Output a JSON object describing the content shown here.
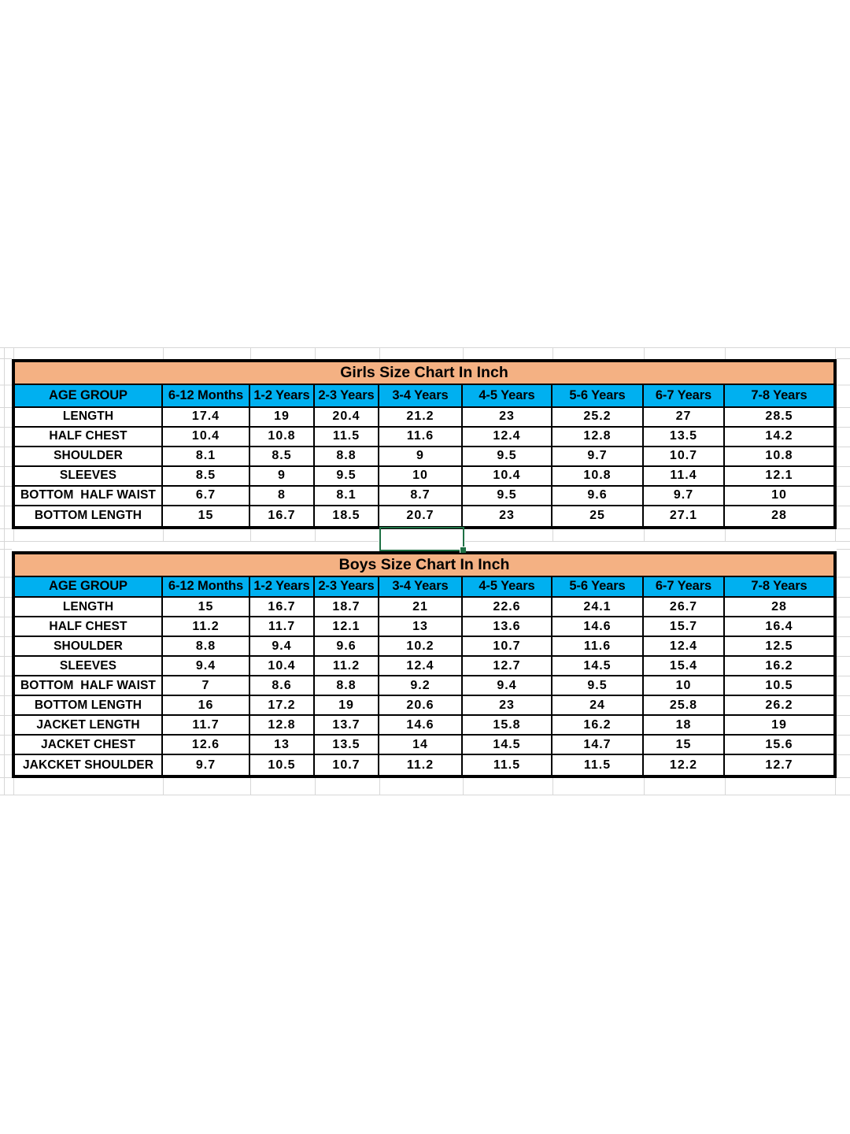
{
  "sheet": {
    "background": "#ffffff",
    "selected_cell": {
      "present": true,
      "note": "empty active cell outline between the two tables under the 3-4 Years column"
    }
  },
  "colors": {
    "title_bg": "#F4B183",
    "header_bg": "#00B0F0",
    "border": "#000000",
    "gridline": "#d7d7d7",
    "selection_green": "#1F7145",
    "text": "#000000"
  },
  "chart_data": [
    {
      "type": "table",
      "title": "Girls Size Chart In Inch",
      "columns": [
        "AGE GROUP",
        "6-12 Months",
        "1-2 Years",
        "2-3 Years",
        "3-4 Years",
        "4-5 Years",
        "5-6 Years",
        "6-7 Years",
        "7-8 Years"
      ],
      "rows": [
        [
          "LENGTH",
          "17.4",
          "19",
          "20.4",
          "21.2",
          "23",
          "25.2",
          "27",
          "28.5"
        ],
        [
          "HALF CHEST",
          "10.4",
          "10.8",
          "11.5",
          "11.6",
          "12.4",
          "12.8",
          "13.5",
          "14.2"
        ],
        [
          "SHOULDER",
          "8.1",
          "8.5",
          "8.8",
          "9",
          "9.5",
          "9.7",
          "10.7",
          "10.8"
        ],
        [
          "SLEEVES",
          "8.5",
          "9",
          "9.5",
          "10",
          "10.4",
          "10.8",
          "11.4",
          "12.1"
        ],
        [
          "BOTTOM  HALF WAIST",
          "6.7",
          "8",
          "8.1",
          "8.7",
          "9.5",
          "9.6",
          "9.7",
          "10"
        ],
        [
          "BOTTOM LENGTH",
          "15",
          "16.7",
          "18.5",
          "20.7",
          "23",
          "25",
          "27.1",
          "28"
        ]
      ]
    },
    {
      "type": "table",
      "title": "Boys Size Chart In Inch",
      "columns": [
        "AGE GROUP",
        "6-12 Months",
        "1-2 Years",
        "2-3 Years",
        "3-4 Years",
        "4-5 Years",
        "5-6 Years",
        "6-7 Years",
        "7-8 Years"
      ],
      "rows": [
        [
          "LENGTH",
          "15",
          "16.7",
          "18.7",
          "21",
          "22.6",
          "24.1",
          "26.7",
          "28"
        ],
        [
          "HALF CHEST",
          "11.2",
          "11.7",
          "12.1",
          "13",
          "13.6",
          "14.6",
          "15.7",
          "16.4"
        ],
        [
          "SHOULDER",
          "8.8",
          "9.4",
          "9.6",
          "10.2",
          "10.7",
          "11.6",
          "12.4",
          "12.5"
        ],
        [
          "SLEEVES",
          "9.4",
          "10.4",
          "11.2",
          "12.4",
          "12.7",
          "14.5",
          "15.4",
          "16.2"
        ],
        [
          "BOTTOM  HALF WAIST",
          "7",
          "8.6",
          "8.8",
          "9.2",
          "9.4",
          "9.5",
          "10",
          "10.5"
        ],
        [
          "BOTTOM LENGTH",
          "16",
          "17.2",
          "19",
          "20.6",
          "23",
          "24",
          "25.8",
          "26.2"
        ],
        [
          "JACKET LENGTH",
          "11.7",
          "12.8",
          "13.7",
          "14.6",
          "15.8",
          "16.2",
          "18",
          "19"
        ],
        [
          "JACKET CHEST",
          "12.6",
          "13",
          "13.5",
          "14",
          "14.5",
          "14.7",
          "15",
          "15.6"
        ],
        [
          "JAKCKET SHOULDER",
          "9.7",
          "10.5",
          "10.7",
          "11.2",
          "11.5",
          "11.5",
          "12.2",
          "12.7"
        ]
      ]
    }
  ]
}
